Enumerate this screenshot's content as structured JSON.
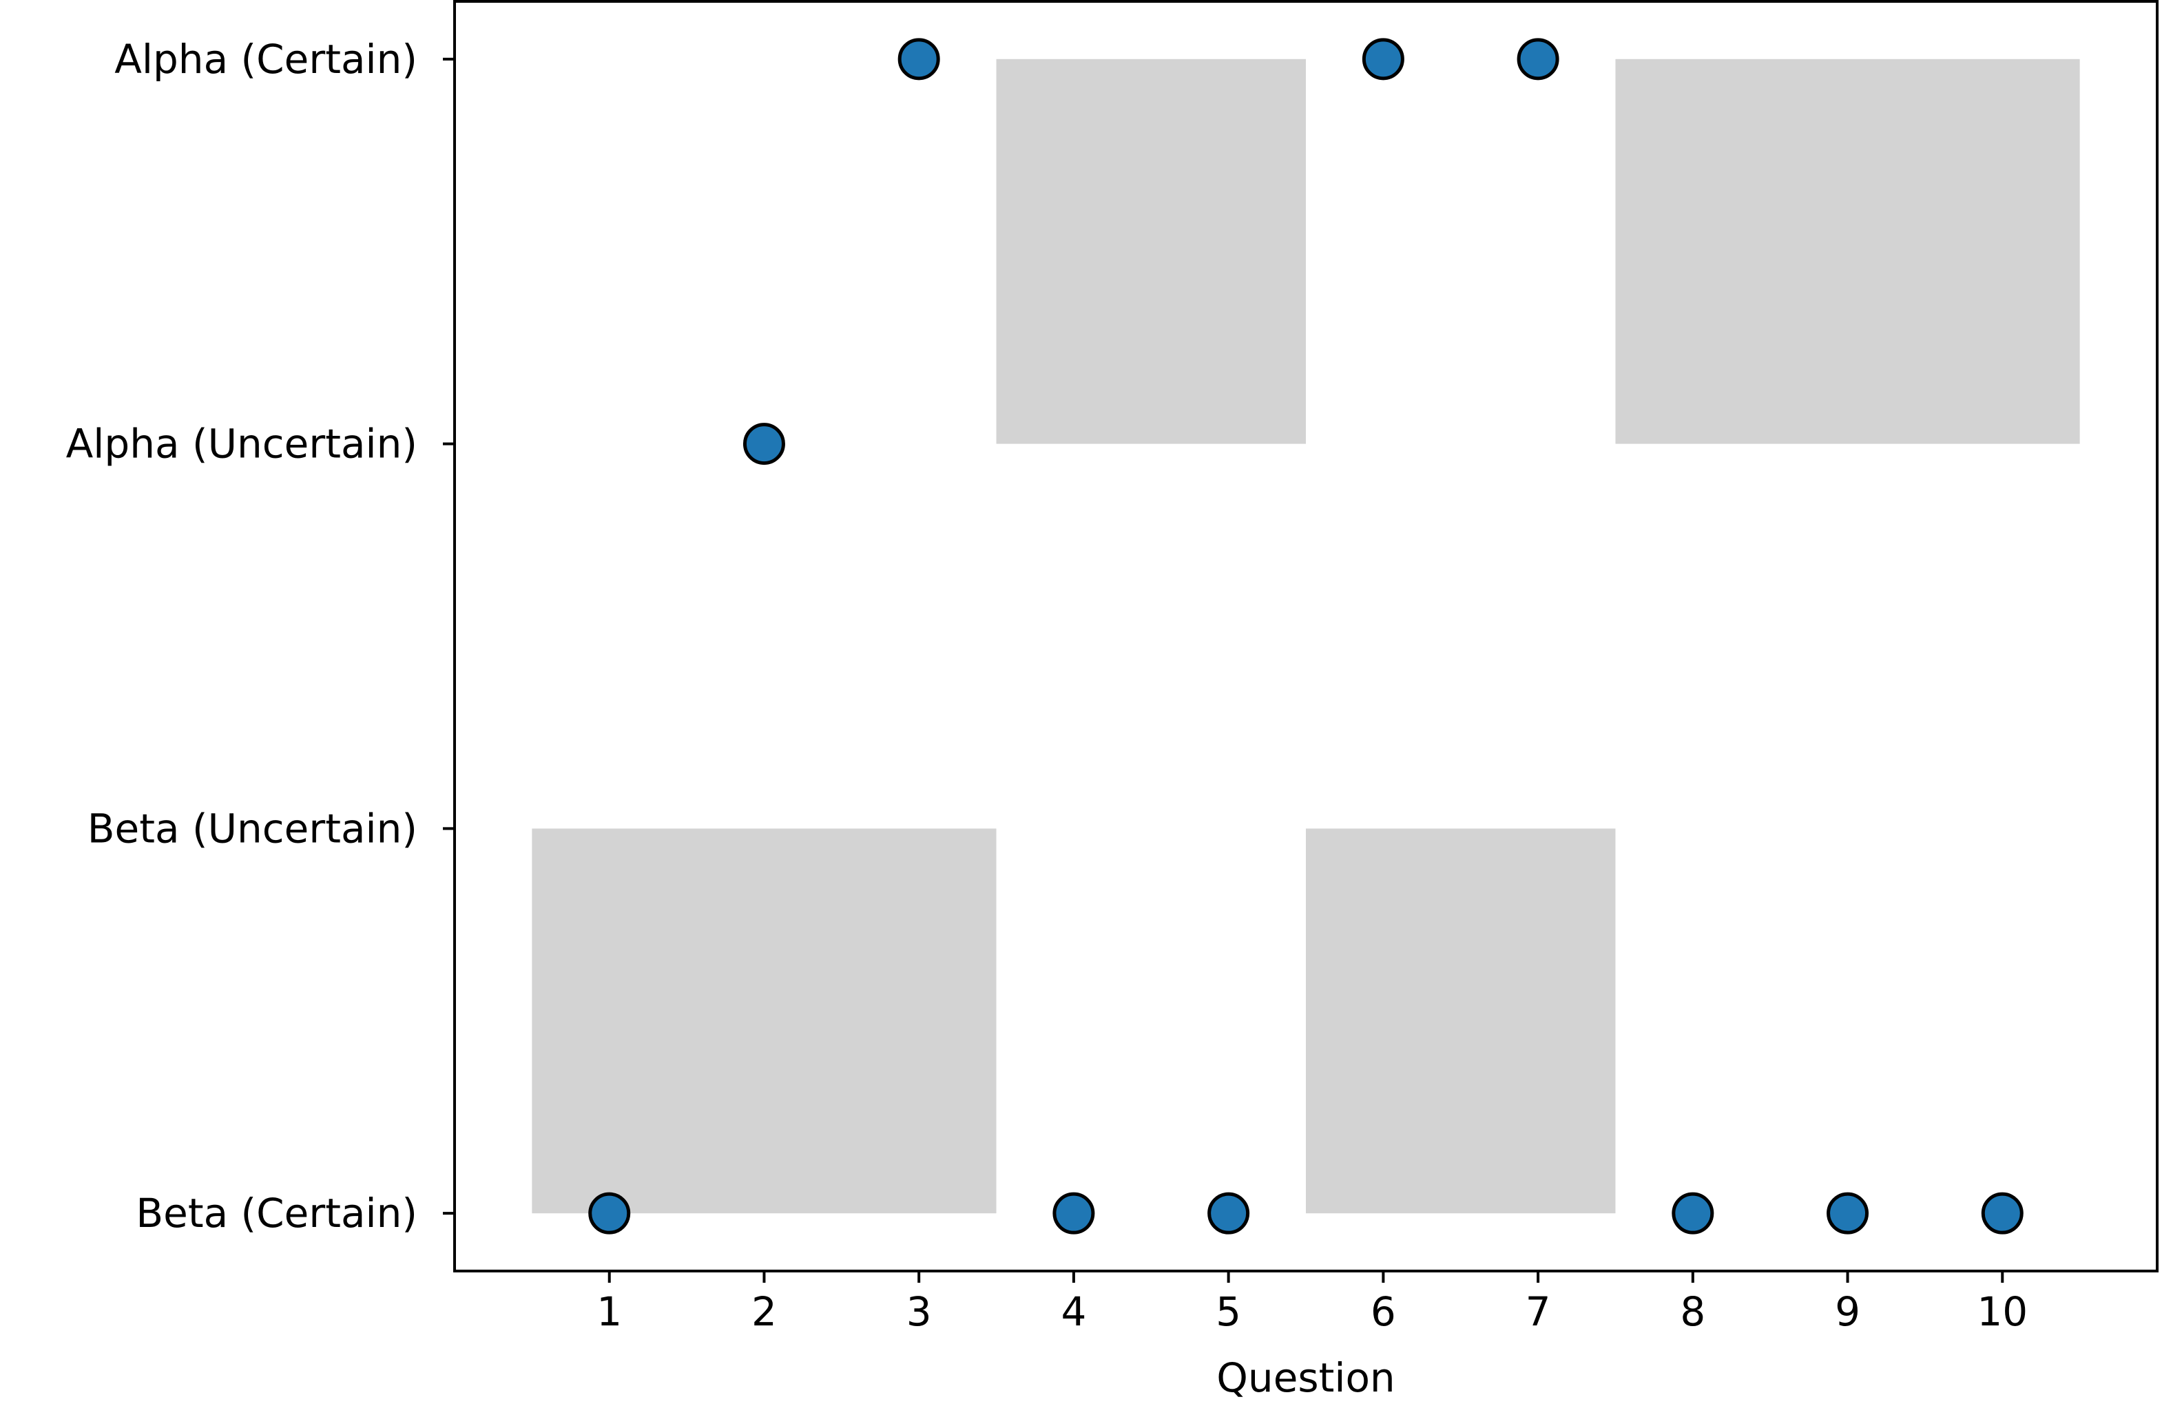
{
  "chart_data": {
    "type": "scatter",
    "title": "",
    "xlabel": "Question",
    "ylabel": "",
    "x_ticks": [
      1,
      2,
      3,
      4,
      5,
      6,
      7,
      8,
      9,
      10
    ],
    "y_categories": [
      "Beta (Certain)",
      "Beta (Uncertain)",
      "Alpha (Uncertain)",
      "Alpha (Certain)"
    ],
    "points": [
      {
        "x": 1,
        "y": "Beta (Certain)"
      },
      {
        "x": 2,
        "y": "Alpha (Uncertain)"
      },
      {
        "x": 3,
        "y": "Alpha (Certain)"
      },
      {
        "x": 4,
        "y": "Beta (Certain)"
      },
      {
        "x": 5,
        "y": "Beta (Certain)"
      },
      {
        "x": 6,
        "y": "Alpha (Certain)"
      },
      {
        "x": 7,
        "y": "Alpha (Certain)"
      },
      {
        "x": 8,
        "y": "Beta (Certain)"
      },
      {
        "x": 9,
        "y": "Beta (Certain)"
      },
      {
        "x": 10,
        "y": "Beta (Certain)"
      }
    ],
    "shaded_regions": [
      {
        "x_range": [
          0.5,
          3.5
        ],
        "y_range": [
          "Beta (Certain)",
          "Beta (Uncertain)"
        ]
      },
      {
        "x_range": [
          3.5,
          5.5
        ],
        "y_range": [
          "Alpha (Uncertain)",
          "Alpha (Certain)"
        ]
      },
      {
        "x_range": [
          5.5,
          7.5
        ],
        "y_range": [
          "Beta (Certain)",
          "Beta (Uncertain)"
        ]
      },
      {
        "x_range": [
          7.5,
          10.5
        ],
        "y_range": [
          "Alpha (Uncertain)",
          "Alpha (Certain)"
        ]
      }
    ],
    "xlim": [
      0,
      11
    ],
    "ylim": [
      -0.15,
      3.15
    ],
    "grid": false,
    "legend": "none",
    "colors": {
      "marker_fill": "#1f77b4",
      "marker_edge": "#000000",
      "shade": "#d3d3d3"
    }
  }
}
